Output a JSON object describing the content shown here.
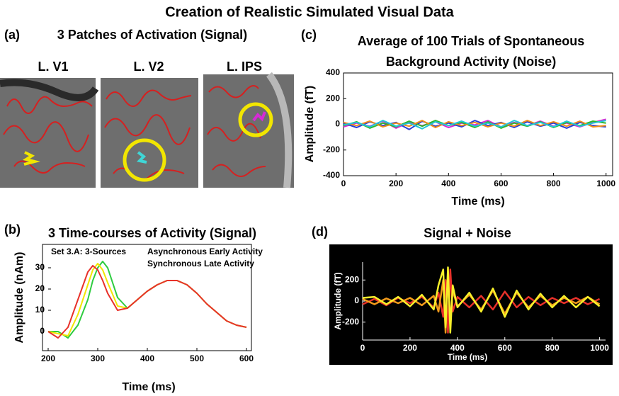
{
  "title": "Creation of Realistic Simulated Visual Data",
  "panel_a": {
    "label": "(a)",
    "title": "3 Patches of Activation (Signal)",
    "images": [
      "L. V1",
      "L. V2",
      "L. IPS"
    ]
  },
  "chart_data": [
    {
      "type": "line",
      "panel_label": "(b)",
      "title": "3 Time-courses of Activity (Signal)",
      "xlabel": "Time (ms)",
      "ylabel": "Amplitude (nAm)",
      "annotations": [
        "Set 3.A:  3-Sources",
        "Asynchronous Early Activity",
        "Synchronous Late Activity"
      ],
      "x": [
        200,
        220,
        240,
        260,
        280,
        290,
        300,
        310,
        320,
        340,
        360,
        380,
        400,
        420,
        440,
        460,
        480,
        500,
        520,
        540,
        560,
        580,
        600
      ],
      "series": [
        {
          "color": "#2ecc40",
          "values": [
            0,
            0,
            -3,
            3,
            15,
            24,
            30,
            33,
            30,
            16,
            11,
            15,
            19,
            22,
            24,
            24,
            22,
            18,
            13,
            9,
            5,
            3,
            2
          ]
        },
        {
          "color": "#f2e600",
          "values": [
            0,
            -1,
            -2,
            8,
            22,
            29,
            32,
            29,
            23,
            12,
            11,
            15,
            19,
            22,
            24,
            24,
            22,
            18,
            13,
            9,
            5,
            3,
            2
          ]
        },
        {
          "color": "#e8312a",
          "values": [
            0,
            -3,
            2,
            15,
            28,
            31,
            29,
            24,
            18,
            10,
            11,
            15,
            19,
            22,
            24,
            24,
            22,
            18,
            13,
            9,
            5,
            3,
            2
          ]
        }
      ],
      "xlim": [
        200,
        610
      ],
      "ylim": [
        -9,
        41
      ],
      "xticks": [
        200,
        300,
        400,
        500,
        600
      ],
      "yticks": [
        0,
        10,
        20,
        30
      ],
      "background": "#ffffff"
    },
    {
      "type": "line",
      "panel_label": "(c)",
      "title": "Average of 100 Trials of Spontaneous Background Activity (Noise)",
      "xlabel": "Time (ms)",
      "ylabel": "Amplitude (fT)",
      "x": [
        0,
        50,
        100,
        150,
        200,
        250,
        300,
        350,
        400,
        450,
        500,
        550,
        600,
        650,
        700,
        750,
        800,
        850,
        900,
        950,
        1000
      ],
      "series": [
        {
          "color": "#d62ad6",
          "values": [
            -20,
            10,
            -15,
            25,
            -30,
            15,
            -10,
            20,
            -25,
            10,
            -5,
            30,
            -20,
            15,
            -10,
            25,
            -15,
            10,
            -20,
            15,
            40
          ]
        },
        {
          "color": "#2a3fd6",
          "values": [
            10,
            -25,
            20,
            -10,
            15,
            -40,
            25,
            -15,
            10,
            -20,
            30,
            -10,
            15,
            -25,
            20,
            -15,
            10,
            -30,
            15,
            -10,
            -20
          ]
        },
        {
          "color": "#2eb82e",
          "values": [
            -10,
            20,
            -30,
            10,
            -20,
            25,
            -15,
            30,
            -10,
            15,
            -25,
            20,
            -30,
            10,
            -15,
            20,
            -25,
            15,
            -10,
            25,
            10
          ]
        },
        {
          "color": "#f08c1a",
          "values": [
            15,
            -10,
            25,
            -20,
            10,
            -15,
            30,
            -25,
            20,
            -10,
            15,
            -20,
            10,
            -15,
            30,
            -10,
            20,
            -15,
            25,
            -20,
            -10
          ]
        },
        {
          "color": "#22c6d6",
          "values": [
            -5,
            15,
            -20,
            30,
            -15,
            10,
            -35,
            20,
            -10,
            25,
            -15,
            10,
            -20,
            30,
            -10,
            15,
            -20,
            25,
            -15,
            10,
            30
          ]
        }
      ],
      "xlim": [
        0,
        1025
      ],
      "ylim": [
        -400,
        400
      ],
      "xticks": [
        0,
        200,
        400,
        600,
        800,
        1000
      ],
      "yticks": [
        -400,
        -200,
        0,
        200,
        400
      ],
      "background": "#ffffff"
    },
    {
      "type": "line",
      "panel_label": "(d)",
      "title": "Signal + Noise",
      "xlabel": "Time (ms)",
      "ylabel": "Amplitude (fT)",
      "x": [
        0,
        50,
        100,
        150,
        200,
        250,
        300,
        320,
        340,
        350,
        360,
        370,
        380,
        400,
        450,
        500,
        550,
        600,
        650,
        700,
        750,
        800,
        850,
        900,
        950,
        1000
      ],
      "series": [
        {
          "color": "#e8312a",
          "values": [
            -30,
            20,
            -40,
            30,
            -20,
            40,
            -60,
            80,
            -150,
            200,
            -300,
            300,
            -100,
            40,
            -60,
            50,
            -80,
            90,
            -60,
            40,
            -40,
            30,
            -20,
            30,
            -30,
            20
          ]
        },
        {
          "color": "#f29a1a",
          "values": [
            20,
            -30,
            25,
            -20,
            30,
            -40,
            50,
            -100,
            200,
            -300,
            250,
            -200,
            100,
            -50,
            60,
            -80,
            100,
            -120,
            80,
            -60,
            50,
            -40,
            30,
            -20,
            40,
            -30
          ]
        },
        {
          "color": "#f7f02a",
          "values": [
            30,
            40,
            -30,
            40,
            -50,
            60,
            -80,
            150,
            300,
            -250,
            320,
            -300,
            150,
            -60,
            80,
            -100,
            120,
            -150,
            100,
            -80,
            70,
            -60,
            50,
            -60,
            40,
            -50
          ]
        }
      ],
      "xlim": [
        0,
        1025
      ],
      "ylim": [
        -370,
        370
      ],
      "xticks": [
        0,
        200,
        400,
        600,
        800,
        1000
      ],
      "yticks": [
        -200,
        0,
        200
      ],
      "background": "#000000"
    }
  ]
}
